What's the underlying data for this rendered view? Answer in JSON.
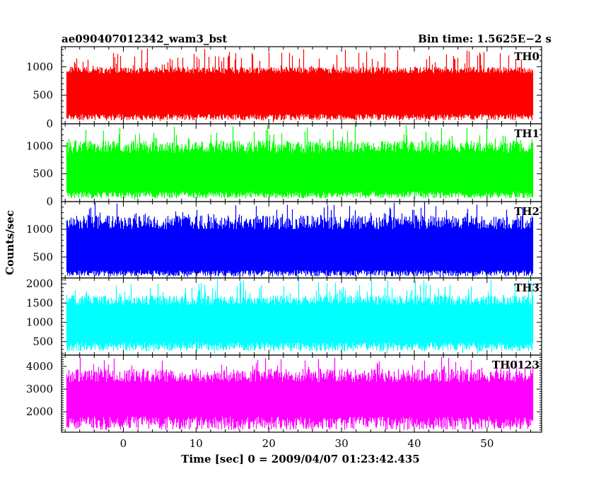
{
  "header": {
    "left_title": "ae090407012342_wam3_bst",
    "right_title": "Bin time: 1.5625E−2 s"
  },
  "axes": {
    "xlabel": "Time [sec] 0 = 2009/04/07 01:23:42.435",
    "ylabel": "Counts/sec"
  },
  "chart_data": {
    "type": "line",
    "x_range": [
      -8.5,
      57.5
    ],
    "x_data_range": [
      -7.8,
      56.2
    ],
    "x_ticks": [
      0,
      10,
      20,
      30,
      40,
      50
    ],
    "grid": false,
    "bin_time_s": 0.015625,
    "panels": [
      {
        "name": "TH0",
        "color": "#ff0000",
        "ylim": [
          0,
          1350
        ],
        "y_ticks": [
          0,
          500,
          1000
        ],
        "envelope_low": 60,
        "envelope_high": 1000,
        "typical_low": 170,
        "typical_high": 880,
        "peak_max": 1330
      },
      {
        "name": "TH1",
        "color": "#00ff00",
        "ylim": [
          0,
          1400
        ],
        "y_ticks": [
          0,
          500,
          1000
        ],
        "envelope_low": 60,
        "envelope_high": 1100,
        "typical_low": 180,
        "typical_high": 880,
        "peak_max": 1400
      },
      {
        "name": "TH2",
        "color": "#0000ff",
        "ylim": [
          120,
          1500
        ],
        "y_ticks": [
          500,
          1000
        ],
        "envelope_low": 150,
        "envelope_high": 1250,
        "typical_low": 260,
        "typical_high": 1000,
        "peak_max": 1500
      },
      {
        "name": "TH3",
        "color": "#00ffff",
        "ylim": [
          150,
          2150
        ],
        "y_ticks": [
          500,
          1000,
          1500,
          2000
        ],
        "envelope_low": 250,
        "envelope_high": 1700,
        "typical_low": 480,
        "typical_high": 1450,
        "peak_max": 2150
      },
      {
        "name": "TH0123",
        "color": "#ff00ff",
        "ylim": [
          1100,
          4500
        ],
        "y_ticks": [
          2000,
          3000,
          4000
        ],
        "envelope_low": 1200,
        "envelope_high": 3900,
        "typical_low": 1800,
        "typical_high": 3300,
        "peak_max": 4450
      }
    ]
  }
}
